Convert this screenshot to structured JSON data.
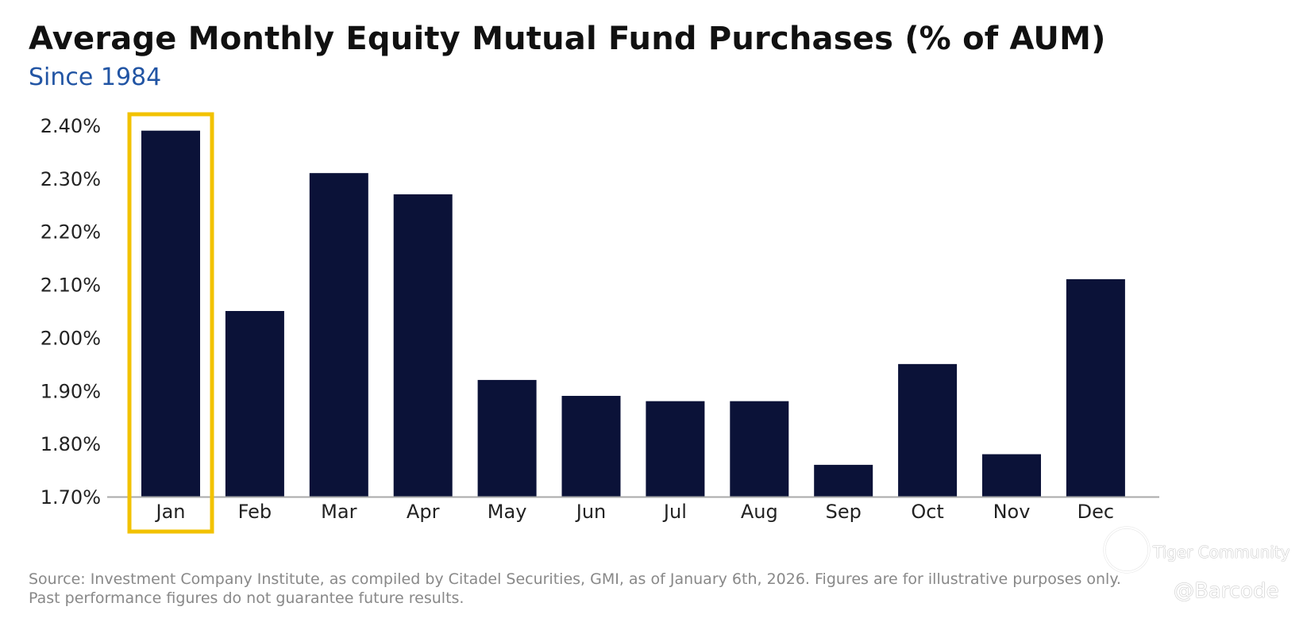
{
  "header": {
    "title": "Average Monthly Equity Mutual Fund Purchases (% of AUM)",
    "subtitle": "Since 1984"
  },
  "chart_data": {
    "type": "bar",
    "title": "Average Monthly Equity Mutual Fund Purchases (% of AUM)",
    "subtitle": "Since 1984",
    "xlabel": "",
    "ylabel": "",
    "ylim": [
      1.7,
      2.4
    ],
    "y_ticks": [
      1.7,
      1.8,
      1.9,
      2.0,
      2.1,
      2.2,
      2.3,
      2.4
    ],
    "y_tick_labels": [
      "1.70%",
      "1.80%",
      "1.90%",
      "2.00%",
      "2.10%",
      "2.20%",
      "2.30%",
      "2.40%"
    ],
    "categories": [
      "Jan",
      "Feb",
      "Mar",
      "Apr",
      "May",
      "Jun",
      "Jul",
      "Aug",
      "Sep",
      "Oct",
      "Nov",
      "Dec"
    ],
    "values": [
      2.39,
      2.05,
      2.31,
      2.27,
      1.92,
      1.89,
      1.88,
      1.88,
      1.76,
      1.95,
      1.78,
      2.11
    ],
    "highlight_category": "Jan",
    "grid": false,
    "colors": {
      "bar": "#0b1238",
      "highlight_box": "#f2c200",
      "axis": "#aaaaaa"
    }
  },
  "footer": {
    "source_line1": "Source: Investment Company Institute, as compiled by Citadel Securities, GMI, as of January 6th, 2026. Figures are for illustrative purposes only.",
    "source_line2": "Past performance figures do not guarantee future results."
  },
  "watermark": {
    "name": "Tiger Community",
    "handle": "@Barcode"
  }
}
